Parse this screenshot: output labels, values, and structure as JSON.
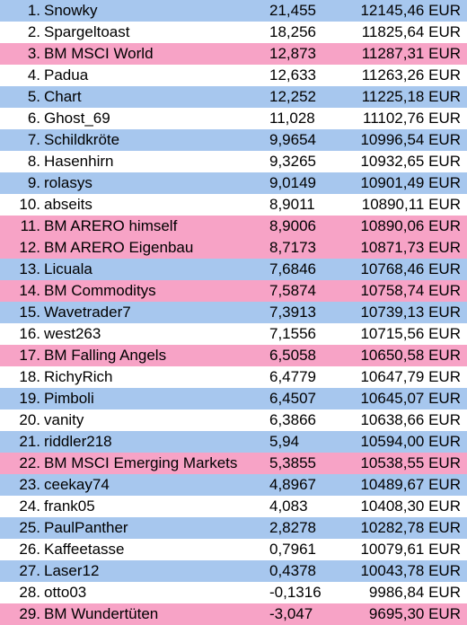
{
  "rows": [
    {
      "rank": "1.",
      "name": "Snowky",
      "score": "21,455",
      "value": "12145,46 EUR",
      "color": "blue"
    },
    {
      "rank": "2.",
      "name": "Spargeltoast",
      "score": "18,256",
      "value": "11825,64 EUR",
      "color": "white"
    },
    {
      "rank": "3.",
      "name": "BM MSCI World",
      "score": "12,873",
      "value": "11287,31 EUR",
      "color": "pink"
    },
    {
      "rank": "4.",
      "name": "Padua",
      "score": "12,633",
      "value": "11263,26 EUR",
      "color": "white"
    },
    {
      "rank": "5.",
      "name": "Chart",
      "score": "12,252",
      "value": "11225,18 EUR",
      "color": "blue"
    },
    {
      "rank": "6.",
      "name": "Ghost_69",
      "score": "11,028",
      "value": "11102,76 EUR",
      "color": "white"
    },
    {
      "rank": "7.",
      "name": "Schildkröte",
      "score": "9,9654",
      "value": "10996,54 EUR",
      "color": "blue"
    },
    {
      "rank": "8.",
      "name": "Hasenhirn",
      "score": "9,3265",
      "value": "10932,65 EUR",
      "color": "white"
    },
    {
      "rank": "9.",
      "name": "rolasys",
      "score": "9,0149",
      "value": "10901,49 EUR",
      "color": "blue"
    },
    {
      "rank": "10.",
      "name": "abseits",
      "score": "8,9011",
      "value": "10890,11 EUR",
      "color": "white"
    },
    {
      "rank": "11.",
      "name": "BM ARERO himself",
      "score": "8,9006",
      "value": "10890,06 EUR",
      "color": "pink"
    },
    {
      "rank": "12.",
      "name": "BM ARERO Eigenbau",
      "score": "8,7173",
      "value": "10871,73 EUR",
      "color": "pink"
    },
    {
      "rank": "13.",
      "name": "Licuala",
      "score": "7,6846",
      "value": "10768,46 EUR",
      "color": "blue"
    },
    {
      "rank": "14.",
      "name": "BM Commoditys",
      "score": "7,5874",
      "value": "10758,74 EUR",
      "color": "pink"
    },
    {
      "rank": "15.",
      "name": "Wavetrader7",
      "score": "7,3913",
      "value": "10739,13 EUR",
      "color": "blue"
    },
    {
      "rank": "16.",
      "name": "west263",
      "score": "7,1556",
      "value": "10715,56 EUR",
      "color": "white"
    },
    {
      "rank": "17.",
      "name": "BM Falling Angels",
      "score": "6,5058",
      "value": "10650,58 EUR",
      "color": "pink"
    },
    {
      "rank": "18.",
      "name": "RichyRich",
      "score": "6,4779",
      "value": "10647,79 EUR",
      "color": "white"
    },
    {
      "rank": "19.",
      "name": "Pimboli",
      "score": "6,4507",
      "value": "10645,07 EUR",
      "color": "blue"
    },
    {
      "rank": "20.",
      "name": "vanity",
      "score": "6,3866",
      "value": "10638,66 EUR",
      "color": "white"
    },
    {
      "rank": "21.",
      "name": "riddler218",
      "score": "5,94",
      "value": "10594,00 EUR",
      "color": "blue"
    },
    {
      "rank": "22.",
      "name": "BM MSCI Emerging Markets",
      "score": "5,3855",
      "value": "10538,55 EUR",
      "color": "pink"
    },
    {
      "rank": "23.",
      "name": "ceekay74",
      "score": "4,8967",
      "value": "10489,67 EUR",
      "color": "blue"
    },
    {
      "rank": "24.",
      "name": "frank05",
      "score": "4,083",
      "value": "10408,30 EUR",
      "color": "white"
    },
    {
      "rank": "25.",
      "name": "PaulPanther",
      "score": "2,8278",
      "value": "10282,78 EUR",
      "color": "blue"
    },
    {
      "rank": "26.",
      "name": "Kaffeetasse",
      "score": "0,7961",
      "value": "10079,61 EUR",
      "color": "white"
    },
    {
      "rank": "27.",
      "name": "Laser12",
      "score": "0,4378",
      "value": "10043,78 EUR",
      "color": "blue"
    },
    {
      "rank": "28.",
      "name": "otto03",
      "score": "-0,1316",
      "value": "9986,84 EUR",
      "color": "white"
    },
    {
      "rank": "29.",
      "name": "BM Wundertüten",
      "score": "-3,047",
      "value": "9695,30 EUR",
      "color": "pink"
    }
  ]
}
